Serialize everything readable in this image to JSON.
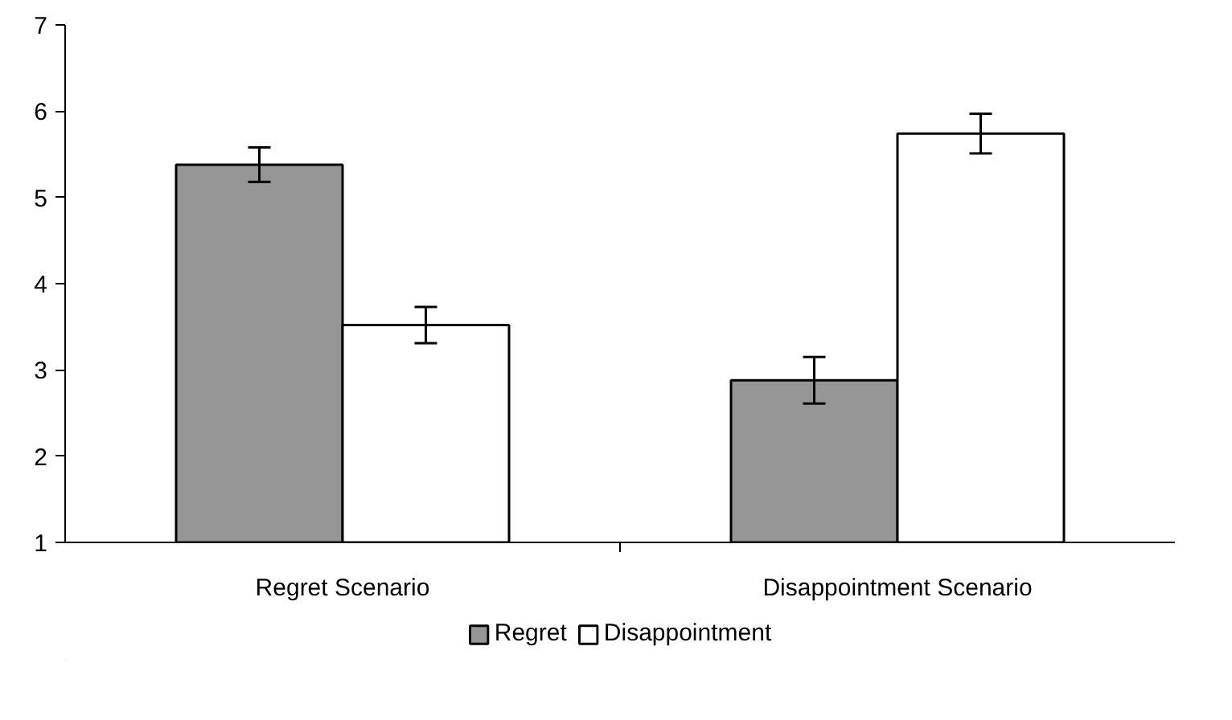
{
  "chart_data": {
    "type": "bar",
    "categories": [
      "Regret Scenario",
      "Disappointment Scenario"
    ],
    "series": [
      {
        "name": "Regret",
        "color": "#969696",
        "values": [
          5.38,
          2.88
        ],
        "errors": [
          0.2,
          0.27
        ]
      },
      {
        "name": "Disappointment",
        "color": "#ffffff",
        "values": [
          3.52,
          5.74
        ],
        "errors": [
          0.21,
          0.23
        ]
      }
    ],
    "ylim": [
      1,
      7
    ],
    "yticks": [
      1,
      2,
      3,
      4,
      5,
      6,
      7
    ],
    "grid": false,
    "legend": "bottom"
  }
}
